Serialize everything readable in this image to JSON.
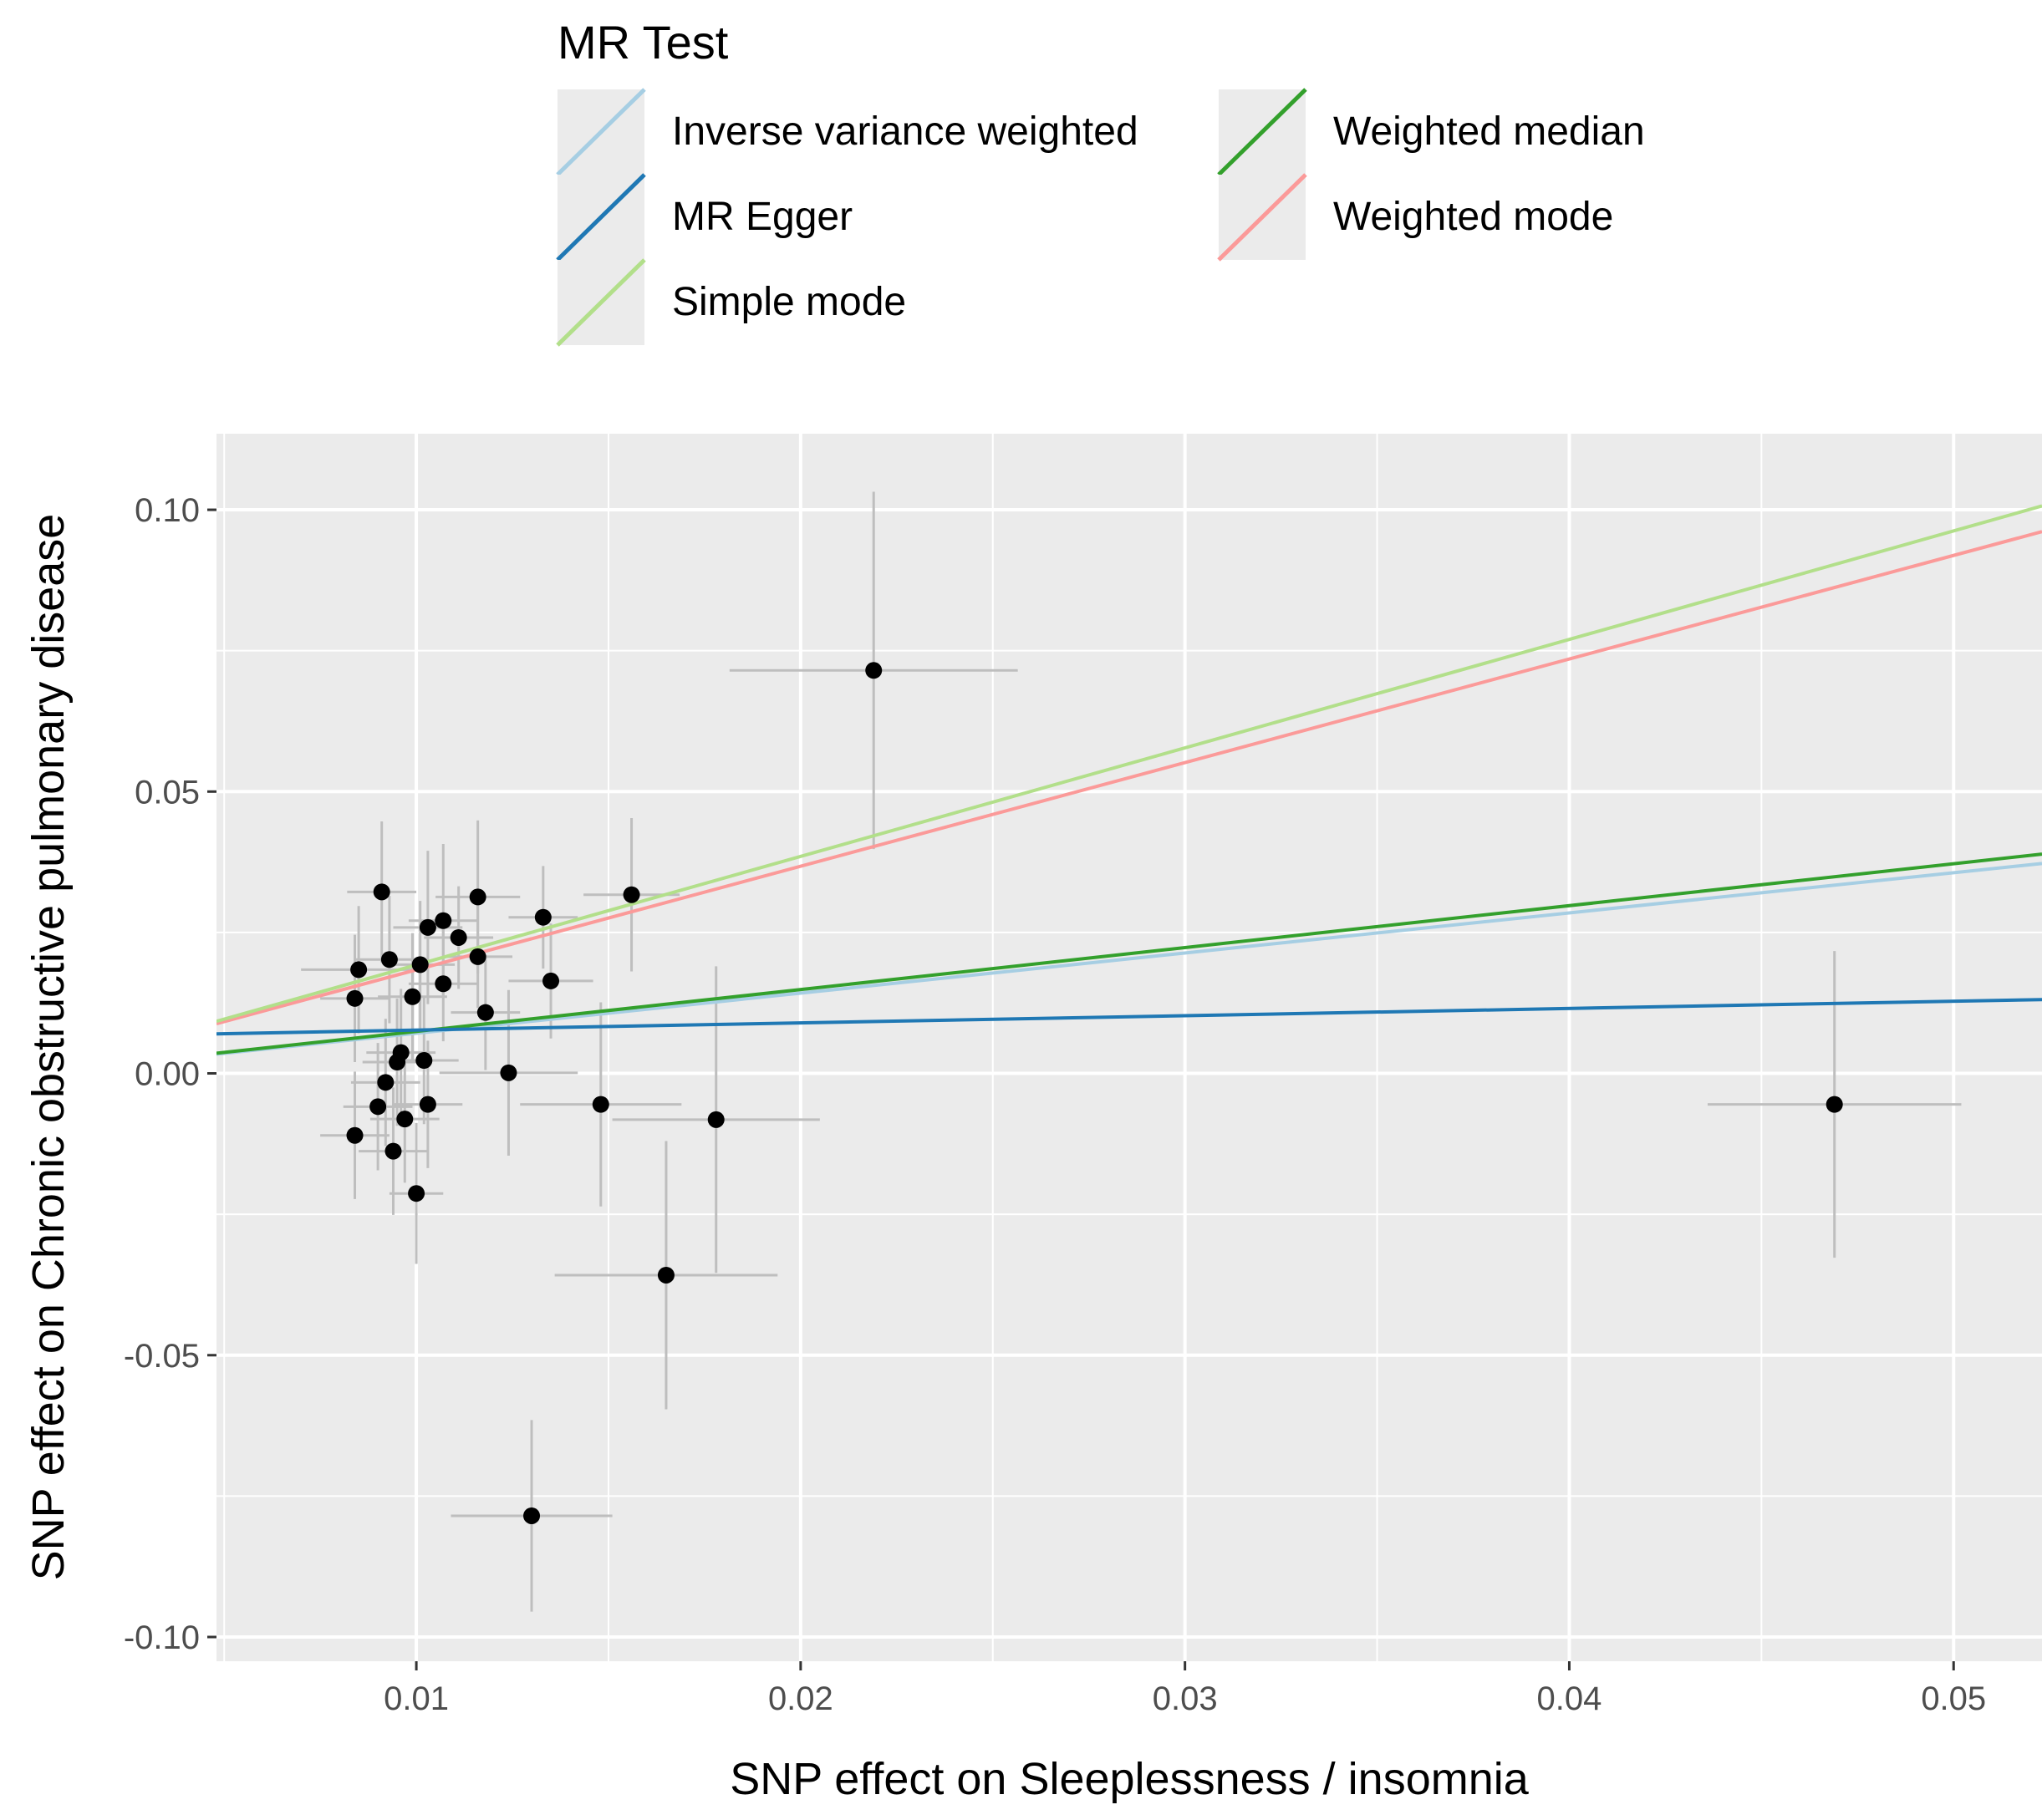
{
  "chart_data": {
    "type": "scatter",
    "title": "",
    "xlabel": "SNP effect on Sleeplessness / insomnia",
    "ylabel": "SNP effect on Chronic obstructive pulmonary disease",
    "xlim": [
      0.0048,
      0.0523
    ],
    "ylim": [
      -0.1043,
      0.1135
    ],
    "x_ticks": [
      0.01,
      0.02,
      0.03,
      0.04,
      0.05
    ],
    "x_tick_labels": [
      "0.01",
      "0.02",
      "0.03",
      "0.04",
      "0.05"
    ],
    "y_ticks": [
      -0.1,
      -0.05,
      0.0,
      0.05,
      0.1
    ],
    "y_tick_labels": [
      "-0.10",
      "-0.05",
      "0.00",
      "0.05",
      "0.10"
    ],
    "grid": true,
    "legend": {
      "title": "MR Test",
      "position": "top",
      "entries": [
        {
          "name": "Inverse variance weighted",
          "color": "#A6CEE3"
        },
        {
          "name": "MR Egger",
          "color": "#1F78B4"
        },
        {
          "name": "Simple mode",
          "color": "#B2DF8A"
        },
        {
          "name": "Weighted median",
          "color": "#33A02C"
        },
        {
          "name": "Weighted mode",
          "color": "#FB9A99"
        }
      ]
    },
    "lines": [
      {
        "name": "Inverse variance weighted",
        "color": "#A6CEE3",
        "intercept": 0.0,
        "slope": 0.712
      },
      {
        "name": "MR Egger",
        "color": "#1F78B4",
        "intercept": 0.0064,
        "slope": 0.128
      },
      {
        "name": "Simple mode",
        "color": "#B2DF8A",
        "intercept": 0.0,
        "slope": 1.925
      },
      {
        "name": "Weighted median",
        "color": "#33A02C",
        "intercept": 0.0,
        "slope": 0.744
      },
      {
        "name": "Weighted mode",
        "color": "#FB9A99",
        "intercept": 0.0,
        "slope": 1.838
      }
    ],
    "points": [
      {
        "x": 0.0219,
        "y": 0.0715,
        "x_se": 0.00375,
        "y_se": 0.0317
      },
      {
        "x": 0.0156,
        "y": 0.0317,
        "x_se": 0.00125,
        "y_se": 0.0136
      },
      {
        "x": 0.0133,
        "y": 0.0277,
        "x_se": 0.0009,
        "y_se": 0.0091
      },
      {
        "x": 0.0135,
        "y": 0.0164,
        "x_se": 0.0011,
        "y_se": 0.0102
      },
      {
        "x": 0.0116,
        "y": 0.0313,
        "x_se": 0.0011,
        "y_se": 0.0136
      },
      {
        "x": 0.0111,
        "y": 0.0241,
        "x_se": 0.0009,
        "y_se": 0.0091
      },
      {
        "x": 0.0107,
        "y": 0.0271,
        "x_se": 0.0009,
        "y_se": 0.0136
      },
      {
        "x": 0.0103,
        "y": 0.0259,
        "x_se": 0.0009,
        "y_se": 0.0136
      },
      {
        "x": 0.0116,
        "y": 0.0207,
        "x_se": 0.0009,
        "y_se": 0.0091
      },
      {
        "x": 0.0107,
        "y": 0.0159,
        "x_se": 0.0009,
        "y_se": 0.0102
      },
      {
        "x": 0.0099,
        "y": 0.0136,
        "x_se": 0.0009,
        "y_se": 0.0113
      },
      {
        "x": 0.0118,
        "y": 0.0108,
        "x_se": 0.0009,
        "y_se": 0.0102
      },
      {
        "x": 0.0093,
        "y": 0.0202,
        "x_se": 0.0009,
        "y_se": 0.0113
      },
      {
        "x": 0.0091,
        "y": 0.0322,
        "x_se": 0.0009,
        "y_se": 0.0125
      },
      {
        "x": 0.0085,
        "y": 0.0184,
        "x_se": 0.0015,
        "y_se": 0.0113
      },
      {
        "x": 0.0084,
        "y": 0.0133,
        "x_se": 0.0009,
        "y_se": 0.0113
      },
      {
        "x": 0.0101,
        "y": 0.0193,
        "x_se": 0.0009,
        "y_se": 0.0113
      },
      {
        "x": 0.0096,
        "y": 0.0037,
        "x_se": 0.0009,
        "y_se": 0.0113
      },
      {
        "x": 0.0095,
        "y": 0.002,
        "x_se": 0.0009,
        "y_se": 0.0113
      },
      {
        "x": 0.0102,
        "y": 0.0023,
        "x_se": 0.0009,
        "y_se": 0.0113
      },
      {
        "x": 0.0092,
        "y": -0.0016,
        "x_se": 0.0009,
        "y_se": 0.0113
      },
      {
        "x": 0.0124,
        "y": 0.0001,
        "x_se": 0.0018,
        "y_se": 0.0147
      },
      {
        "x": 0.009,
        "y": -0.0059,
        "x_se": 0.0009,
        "y_se": 0.0113
      },
      {
        "x": 0.0103,
        "y": -0.0055,
        "x_se": 0.0009,
        "y_se": 0.0113
      },
      {
        "x": 0.0097,
        "y": -0.0081,
        "x_se": 0.0009,
        "y_se": 0.0113
      },
      {
        "x": 0.0084,
        "y": -0.011,
        "x_se": 0.0009,
        "y_se": 0.0113
      },
      {
        "x": 0.0094,
        "y": -0.0138,
        "x_se": 0.0009,
        "y_se": 0.0113
      },
      {
        "x": 0.01,
        "y": -0.0213,
        "x_se": 0.0007,
        "y_se": 0.0125
      },
      {
        "x": 0.0148,
        "y": -0.0055,
        "x_se": 0.0021,
        "y_se": 0.0181
      },
      {
        "x": 0.0178,
        "y": -0.0082,
        "x_se": 0.0027,
        "y_se": 0.0272
      },
      {
        "x": 0.0165,
        "y": -0.0358,
        "x_se": 0.0029,
        "y_se": 0.0238
      },
      {
        "x": 0.013,
        "y": -0.0785,
        "x_se": 0.0021,
        "y_se": 0.017
      },
      {
        "x": 0.0469,
        "y": -0.0055,
        "x_se": 0.0033,
        "y_se": 0.0272
      }
    ]
  }
}
